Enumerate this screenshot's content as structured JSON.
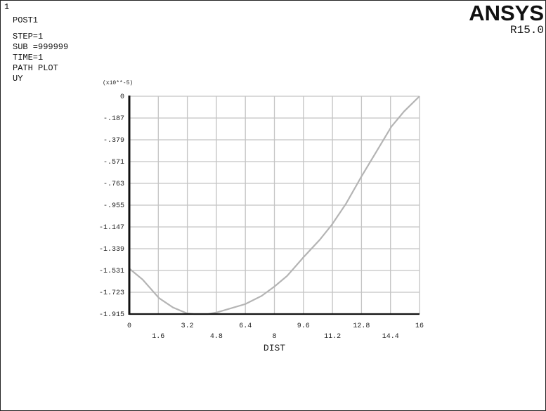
{
  "window_number": "1",
  "info_lines": [
    "POST1",
    "STEP=1",
    "SUB =999999",
    "TIME=1",
    "PATH PLOT",
    "UY"
  ],
  "brand": {
    "name": "ANSYS",
    "version": "R15.0"
  },
  "colors": {
    "curve": "#b4b4b4",
    "grid": "#c4c4c4",
    "axis": "#111111"
  },
  "chart_data": {
    "type": "line",
    "title": "",
    "xlabel": "DIST",
    "ylabel": "",
    "y_multiplier_label": "(x10**-5)",
    "xlim": [
      0,
      16
    ],
    "ylim": [
      -1.915,
      0
    ],
    "grid": true,
    "x_ticks_row1": [
      "0",
      "3.2",
      "6.4",
      "9.6",
      "12.8",
      "16"
    ],
    "x_ticks_row2": [
      "1.6",
      "4.8",
      "8",
      "11.2",
      "14.4"
    ],
    "y_ticks": [
      "0",
      "-.187",
      "-.379",
      "-.571",
      "-.763",
      "-.955",
      "-1.147",
      "-1.339",
      "-1.531",
      "-1.723",
      "-1.915"
    ],
    "series": [
      {
        "x": [
          0,
          0.73,
          1.64,
          2.41,
          3.18,
          3.57,
          4.34,
          4.86,
          6.4,
          7.3,
          8.0,
          8.7,
          9.6,
          10.5,
          11.17,
          11.95,
          12.79,
          13.6,
          14.45,
          15.15,
          16
        ],
        "y": [
          -1.515,
          -1.611,
          -1.775,
          -1.857,
          -1.909,
          -1.915,
          -1.915,
          -1.899,
          -1.827,
          -1.755,
          -1.673,
          -1.58,
          -1.416,
          -1.262,
          -1.129,
          -0.944,
          -0.708,
          -0.493,
          -0.267,
          -0.133,
          0
        ]
      }
    ]
  }
}
